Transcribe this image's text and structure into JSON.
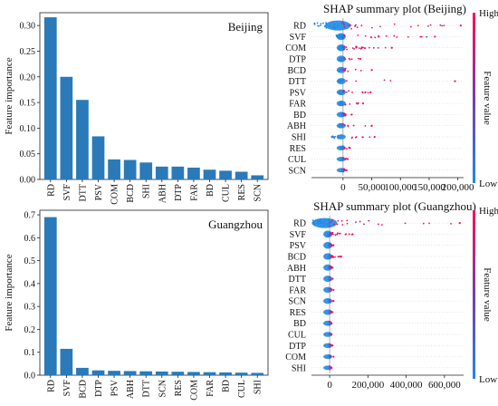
{
  "colors": {
    "bar": "#2a7ab9",
    "shap_low": "#1e88e5",
    "shap_high": "#ff0d57",
    "axis": "#222222"
  },
  "chart_data": [
    {
      "type": "bar",
      "title": "Beijing",
      "ylabel": "Feature importance",
      "categories": [
        "RD",
        "SVF",
        "DTT",
        "PSV",
        "COM",
        "BCD",
        "SHI",
        "ABH",
        "DTP",
        "FAR",
        "BD",
        "CUL",
        "RES",
        "SCN"
      ],
      "values": [
        0.316,
        0.2,
        0.155,
        0.084,
        0.039,
        0.038,
        0.033,
        0.025,
        0.025,
        0.023,
        0.019,
        0.017,
        0.015,
        0.008
      ],
      "ylim": [
        0,
        0.325
      ],
      "yticks": [
        "0.00",
        "0.05",
        "0.10",
        "0.15",
        "0.20",
        "0.25",
        "0.30"
      ],
      "ytick_values": [
        0,
        0.05,
        0.1,
        0.15,
        0.2,
        0.25,
        0.3
      ]
    },
    {
      "type": "bar",
      "title": "Guangzhou",
      "ylabel": "Feature importance",
      "categories": [
        "RD",
        "SVF",
        "BCD",
        "DTP",
        "PSV",
        "ABH",
        "DTT",
        "SCN",
        "RES",
        "COM",
        "FAR",
        "BD",
        "CUL",
        "SHI"
      ],
      "values": [
        0.69,
        0.115,
        0.032,
        0.021,
        0.019,
        0.018,
        0.017,
        0.016,
        0.015,
        0.014,
        0.013,
        0.012,
        0.011,
        0.01
      ],
      "ylim": [
        0,
        0.72
      ],
      "yticks": [
        "0.0",
        "0.1",
        "0.2",
        "0.3",
        "0.4",
        "0.5",
        "0.6",
        "0.7"
      ],
      "ytick_values": [
        0,
        0.1,
        0.2,
        0.3,
        0.4,
        0.5,
        0.6,
        0.7
      ]
    },
    {
      "type": "scatter",
      "title": "SHAP summary plot (Beijing)",
      "features": [
        "RD",
        "SVF",
        "COM",
        "DTP",
        "BCD",
        "DTT",
        "PSV",
        "FAR",
        "BD",
        "ABH",
        "SHI",
        "RES",
        "CUL",
        "SCN"
      ],
      "max_shap": [
        205000,
        160000,
        85000,
        30000,
        50000,
        195000,
        48000,
        35000,
        15000,
        50000,
        55000,
        12000,
        8000,
        6000
      ],
      "min_shap": [
        -50000,
        -12000,
        -8000,
        -6000,
        -8000,
        -10000,
        -8000,
        -6000,
        -5000,
        -8000,
        -20000,
        -4000,
        -3000,
        -3000
      ],
      "xlim": [
        -55000,
        210000
      ],
      "xticks": [
        "0",
        "50,000",
        "100,000",
        "150,000",
        "200,000"
      ],
      "xtick_values": [
        0,
        50000,
        100000,
        150000,
        200000
      ],
      "colorbar_label": "Feature value",
      "colorbar_high": "High",
      "colorbar_low": "Low"
    },
    {
      "type": "scatter",
      "title": "SHAP summary plot (Guangzhou)",
      "features": [
        "RD",
        "SVF",
        "PSV",
        "BCD",
        "ABH",
        "DTT",
        "FAR",
        "SCN",
        "RES",
        "BD",
        "CUL",
        "DTP",
        "COM",
        "SHI"
      ],
      "max_shap": [
        680000,
        120000,
        20000,
        60000,
        15000,
        15000,
        20000,
        20000,
        15000,
        10000,
        10000,
        15000,
        20000,
        10000
      ],
      "min_shap": [
        -90000,
        -12000,
        -6000,
        -20000,
        -8000,
        -6000,
        -6000,
        -6000,
        -5000,
        -5000,
        -4000,
        -6000,
        -5000,
        -4000
      ],
      "xlim": [
        -95000,
        700000
      ],
      "xticks": [
        "0",
        "200,000",
        "400,000",
        "600,000"
      ],
      "xtick_values": [
        0,
        200000,
        400000,
        600000
      ],
      "colorbar_label": "Feature value",
      "colorbar_high": "High",
      "colorbar_low": "Low"
    }
  ]
}
